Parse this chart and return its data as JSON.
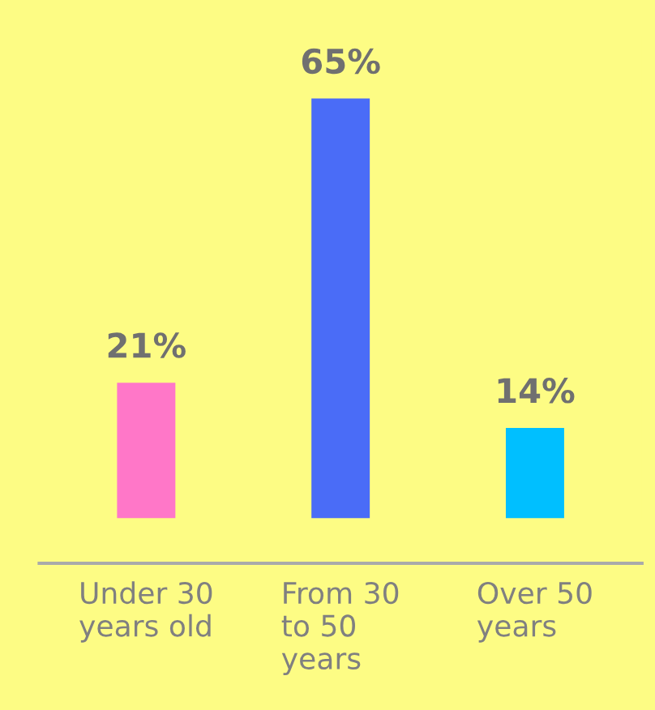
{
  "chart_data": {
    "type": "bar",
    "categories": [
      "Under 30\nyears old",
      "From 30\nto 50\nyears",
      "Over 50\nyears"
    ],
    "values": [
      21,
      65,
      14
    ],
    "colors": [
      "#ff77c8",
      "#4a6cf7",
      "#00bfff"
    ],
    "value_labels": [
      "21%",
      "65%",
      "14%"
    ],
    "grid": false,
    "legend": false
  }
}
